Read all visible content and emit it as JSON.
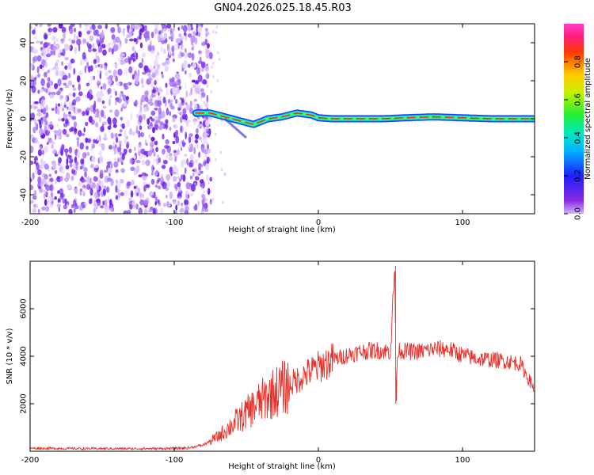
{
  "title": "GN04.2026.025.18.45.R03",
  "colors": {
    "line": "#e8302a",
    "scatter": "#7b2ff0",
    "trace_core": "#e8302a",
    "trace_glow": "#33ff66",
    "trace_edge": "#1e3cff"
  },
  "chart_data": [
    {
      "id": "spectrogram",
      "type": "heatmap",
      "xlabel": "Height of straight line (km)",
      "ylabel": "Frequency (Hz)",
      "xlim": [
        -200,
        150
      ],
      "ylim": [
        -50,
        50
      ],
      "xticks": [
        -200,
        -100,
        0,
        100
      ],
      "xtick_labels": [
        "-200",
        "-100",
        "0",
        "100"
      ],
      "yticks": [
        -40,
        -20,
        0,
        20,
        40
      ],
      "ytick_labels": [
        "-40",
        "-20",
        "0",
        "20",
        "40"
      ],
      "colorbar": {
        "label": "Normalized spectral amplitude",
        "range": [
          0,
          1
        ],
        "ticks": [
          0,
          0.2,
          0.4,
          0.6,
          0.8
        ],
        "tick_labels": [
          "0.0",
          "0.2",
          "0.4",
          "0.6",
          "0.8"
        ],
        "colormap": "rainbow (violet → blue → cyan → green → yellow → red → magenta)"
      },
      "noise_region": {
        "x_range": [
          -200,
          -80
        ],
        "frequency_range": [
          -50,
          50
        ],
        "amplitude": 0.1
      },
      "trace": {
        "x": [
          -85,
          -75,
          -65,
          -55,
          -45,
          -35,
          -25,
          -15,
          -5,
          0,
          10,
          25,
          45,
          60,
          80,
          100,
          120,
          150
        ],
        "frequency": [
          3,
          3,
          1,
          -1,
          -3,
          0,
          1,
          3,
          2,
          0.5,
          0,
          0,
          0,
          0.5,
          1,
          0.5,
          0,
          0
        ]
      }
    },
    {
      "id": "snr",
      "type": "line",
      "xlabel": "Height of straight line (km)",
      "ylabel": "SNR (10 * v/v)",
      "xlim": [
        -200,
        150
      ],
      "ylim": [
        0,
        8000
      ],
      "xticks": [
        -200,
        -100,
        0,
        100
      ],
      "xtick_labels": [
        "-200",
        "-100",
        "0",
        "100"
      ],
      "yticks": [
        2000,
        4000,
        6000
      ],
      "ytick_labels": [
        "2000",
        "4000",
        "6000"
      ],
      "series": [
        {
          "name": "SNR",
          "x": [
            -200,
            -180,
            -160,
            -140,
            -120,
            -100,
            -90,
            -80,
            -70,
            -60,
            -50,
            -40,
            -30,
            -20,
            -10,
            0,
            10,
            20,
            30,
            40,
            50,
            53,
            54,
            55,
            60,
            70,
            80,
            90,
            100,
            110,
            120,
            130,
            140,
            150
          ],
          "y": [
            130,
            120,
            110,
            110,
            110,
            120,
            140,
            260,
            600,
            1100,
            1600,
            2100,
            2500,
            2800,
            3200,
            3550,
            3850,
            4050,
            4200,
            4250,
            4200,
            7800,
            2000,
            4300,
            4200,
            4200,
            4300,
            4300,
            4050,
            3900,
            3850,
            3800,
            3700,
            2600
          ],
          "spikes": [
            {
              "x": 53.5,
              "y": 7800
            },
            {
              "x": 53.7,
              "y": 2000
            }
          ]
        }
      ]
    }
  ]
}
